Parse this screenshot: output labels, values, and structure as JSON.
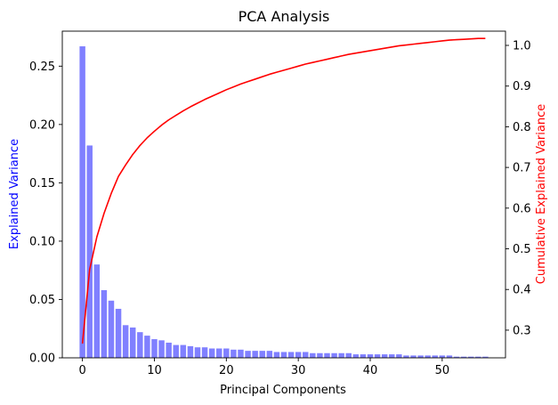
{
  "chart_data": {
    "type": "bar+line",
    "title": "PCA Analysis",
    "xlabel": "Principal Components",
    "ylabel_left": "Explained Variance",
    "ylabel_right": "Cumulative Explained Variance",
    "xlim": [
      -2.8,
      58.8
    ],
    "ylim_left": [
      0,
      0.28
    ],
    "ylim_right": [
      0.232,
      1.035
    ],
    "x_ticks": [
      0,
      10,
      20,
      30,
      40,
      50
    ],
    "y_ticks_left": [
      0.0,
      0.05,
      0.1,
      0.15,
      0.2,
      0.25
    ],
    "y_ticks_right": [
      0.3,
      0.4,
      0.5,
      0.6,
      0.7,
      0.8,
      0.9,
      1.0
    ],
    "grid": false,
    "colors": {
      "bars": "#8080ff",
      "line": "#ff0000",
      "left_label": "#0000ff",
      "right_label": "#ff0000"
    },
    "x": [
      0,
      1,
      2,
      3,
      4,
      5,
      6,
      7,
      8,
      9,
      10,
      11,
      12,
      13,
      14,
      15,
      16,
      17,
      18,
      19,
      20,
      21,
      22,
      23,
      24,
      25,
      26,
      27,
      28,
      29,
      30,
      31,
      32,
      33,
      34,
      35,
      36,
      37,
      38,
      39,
      40,
      41,
      42,
      43,
      44,
      45,
      46,
      47,
      48,
      49,
      50,
      51,
      52,
      53,
      54,
      55,
      56
    ],
    "series": [
      {
        "type": "bar",
        "axis": "left",
        "values": [
          0.267,
          0.182,
          0.08,
          0.058,
          0.049,
          0.042,
          0.028,
          0.026,
          0.022,
          0.019,
          0.016,
          0.015,
          0.013,
          0.011,
          0.011,
          0.01,
          0.009,
          0.009,
          0.008,
          0.008,
          0.008,
          0.007,
          0.007,
          0.006,
          0.006,
          0.006,
          0.006,
          0.005,
          0.005,
          0.005,
          0.005,
          0.005,
          0.004,
          0.004,
          0.004,
          0.004,
          0.004,
          0.004,
          0.003,
          0.003,
          0.003,
          0.003,
          0.003,
          0.003,
          0.003,
          0.002,
          0.002,
          0.002,
          0.002,
          0.002,
          0.002,
          0.002,
          0.001,
          0.001,
          0.001,
          0.001,
          0.001
        ]
      },
      {
        "type": "line",
        "axis": "right",
        "values": [
          0.267,
          0.449,
          0.529,
          0.587,
          0.636,
          0.678,
          0.706,
          0.732,
          0.754,
          0.773,
          0.789,
          0.804,
          0.817,
          0.828,
          0.839,
          0.849,
          0.858,
          0.867,
          0.875,
          0.883,
          0.891,
          0.898,
          0.905,
          0.911,
          0.917,
          0.923,
          0.929,
          0.934,
          0.939,
          0.944,
          0.949,
          0.954,
          0.958,
          0.962,
          0.966,
          0.97,
          0.974,
          0.978,
          0.981,
          0.984,
          0.987,
          0.99,
          0.993,
          0.996,
          0.999,
          1.001,
          1.003,
          1.005,
          1.007,
          1.009,
          1.011,
          1.013,
          1.014,
          1.015,
          1.016,
          1.017,
          1.017
        ]
      }
    ]
  }
}
